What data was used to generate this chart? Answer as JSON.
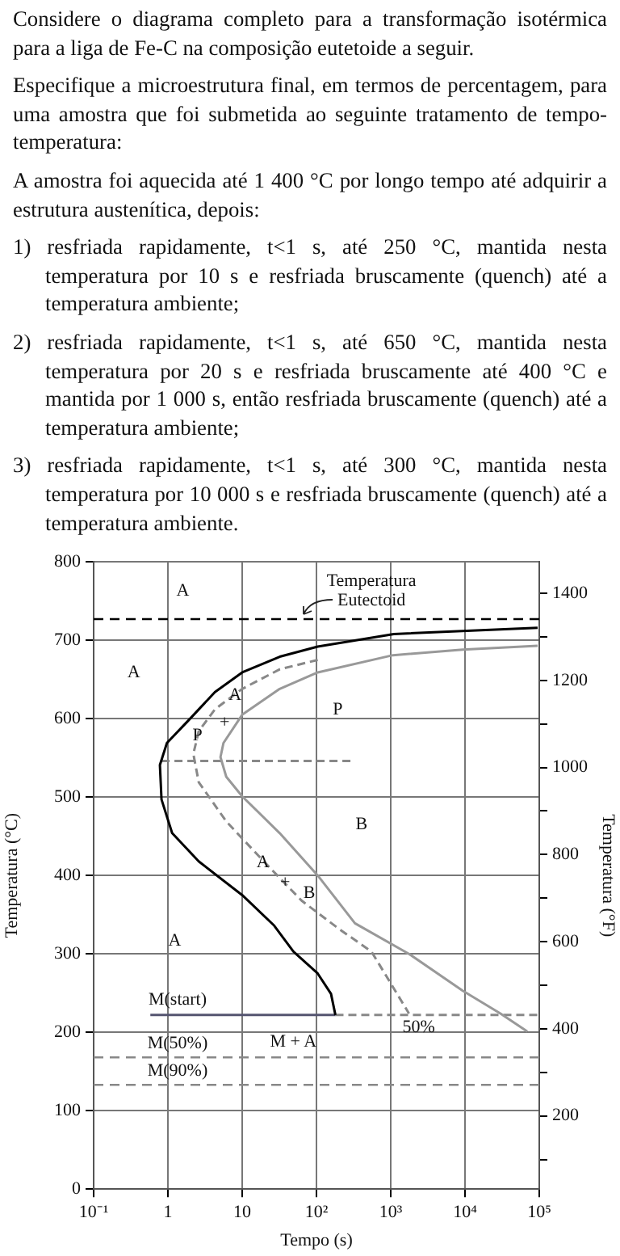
{
  "chart_data": {
    "type": "line",
    "title": "Considere o diagrama completo para a transformação isotérmica para a liga de Fe-C na composição eutetoide a seguir.",
    "subtitle": "Especifique a microestrutura final, em termos de percentagem, para uma amostra que foi submetida ao seguinte tratamento de tempo-temperatura:",
    "xlabel": "Tempo (s)",
    "ylabel": "Temperatura (°C)",
    "y2label": "Temperatura (°F)",
    "log": "x",
    "grid": true,
    "legend": false,
    "marker": "none",
    "xlim": [
      0.1,
      100000
    ],
    "xticks": [
      {
        "value": 0.1,
        "label": "10⁻¹"
      },
      1,
      10,
      {
        "value": 100,
        "label": "10²"
      },
      {
        "value": 1000,
        "label": "10³"
      },
      {
        "value": 10000,
        "label": "10⁴"
      },
      {
        "value": 100000,
        "label": "10⁵"
      }
    ],
    "ylim": [
      0,
      800
    ],
    "yticks": [
      0,
      100,
      200,
      300,
      400,
      500,
      600,
      700,
      800
    ],
    "y2lim": [
      32,
      1472
    ],
    "y2ticks": [
      {
        "value": 100,
        "label": null
      },
      200,
      {
        "value": 300,
        "label": null
      },
      400,
      {
        "value": 500,
        "label": null
      },
      600,
      {
        "value": 700,
        "label": null
      },
      800,
      {
        "value": 900,
        "label": null
      },
      1000,
      {
        "value": 1100,
        "label": null
      },
      1200,
      {
        "value": 1300,
        "label": null
      },
      1400
    ],
    "series": [
      {
        "color": "#000000",
        "x": [
          95000,
          1100,
          104,
          32,
          10,
          4.3,
          1.9,
          0.97,
          0.78,
          0.82,
          1.14,
          2.6,
          10,
          27,
          49,
          104,
          157,
          180
        ],
        "values": [
          716,
          708,
          692,
          679,
          659,
          634,
          598,
          569,
          541,
          497,
          454,
          418,
          375,
          336,
          303,
          275,
          249,
          222
        ]
      },
      {
        "color": "#999999",
        "x": [
          95000,
          9300,
          1070,
          104,
          32,
          10,
          5.6,
          5.1,
          6.1,
          10,
          32,
          104,
          330,
          1760,
          9300,
          30000,
          69000
        ],
        "values": [
          693,
          688,
          681,
          659,
          638,
          605,
          569,
          551,
          526,
          501,
          454,
          400,
          339,
          300,
          253,
          224,
          201
        ]
      },
      {
        "color": "#888888",
        "line_style": "dashed",
        "x": [
          104,
          32,
          10,
          4.3,
          2.6,
          2.2,
          2.6,
          6.1,
          19.5,
          63,
          200,
          550,
          1760
        ],
        "values": [
          675,
          663,
          638,
          612,
          584,
          555,
          519,
          469,
          418,
          368,
          332,
          303,
          224
        ]
      },
      {
        "color": "#888888",
        "line_style": "dashed",
        "x": [
          0.82,
          330
        ],
        "values": [
          546,
          546
        ]
      },
      {
        "color": "#555570",
        "x": [
          0.58,
          180
        ],
        "values": [
          222,
          222
        ]
      },
      {
        "color": "#888888",
        "line_style": "dashed",
        "x": [
          180,
          100000
        ],
        "values": [
          222,
          222
        ]
      }
    ],
    "ref_lines": [
      {
        "axis": "y",
        "value": 727,
        "color": "#000000",
        "line_style": "dashed"
      },
      {
        "axis": "y",
        "value": 168,
        "label": "M(50%)",
        "color": "#888888",
        "line_style": "dashed"
      },
      {
        "axis": "y",
        "value": 133,
        "label": "M(90%)",
        "color": "#888888",
        "line_style": "dashed"
      }
    ],
    "annotations": [
      "A amostra foi aquecida até 1 400 °C por longo tempo até adquirir a estrutura austenítica, depois:",
      "1) resfriada rapidamente, t<1 s, até 250 °C, mantida nesta temperatura por 10 s e resfriada bruscamente (quench) até a temperatura ambiente;",
      "2) resfriada rapidamente, t<1 s, até 650 °C, mantida nesta temperatura por 20 s e resfriada bruscamente até 400 °C e mantida por 1 000 s, então resfriada bruscamente (quench) até a temperatura ambiente;",
      "3) resfriada rapidamente, t<1 s, até 300 °C, mantida nesta temperatura por 10 000 s e resfriada bruscamente (quench) até a temperatura ambiente.",
      "A",
      "A",
      "P",
      "B",
      "B",
      "A",
      "M + A",
      {
        "text": "Temperatura Eutectoid",
        "x": 550,
        "y": 727
      },
      {
        "text": "A",
        "x": 8,
        "y": 630
      },
      {
        "text": "+",
        "x": 4.3,
        "y": 612
      },
      {
        "text": "P",
        "x": 2.5,
        "y": 578
      },
      {
        "text": "A",
        "x": 19,
        "y": 416
      },
      {
        "text": "+",
        "x": 38,
        "y": 391
      },
      {
        "text": "M(start)",
        "x": 1.35,
        "y": 222
      },
      {
        "text": "50%",
        "x": 1760,
        "y": 224
      }
    ]
  }
}
